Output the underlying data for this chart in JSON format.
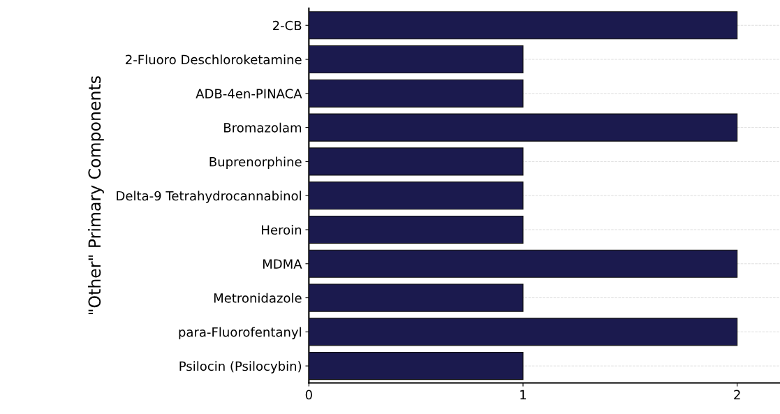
{
  "chart_data": {
    "type": "bar",
    "orientation": "horizontal",
    "ylabel": "\"Other\" Primary Components",
    "categories": [
      "2-CB",
      "2-Fluoro Deschloroketamine",
      "ADB-4en-PINACA",
      "Bromazolam",
      "Buprenorphine",
      "Delta-9 Tetrahydrocannabinol",
      "Heroin",
      "MDMA",
      "Metronidazole",
      "para-Fluorofentanyl",
      "Psilocin (Psilocybin)"
    ],
    "values": [
      2,
      1,
      1,
      2,
      1,
      1,
      1,
      2,
      1,
      2,
      1
    ],
    "color": "#1b1a4e",
    "xlim": [
      0,
      2.2
    ],
    "xticks": [
      0,
      1,
      2
    ],
    "grid": "y"
  }
}
